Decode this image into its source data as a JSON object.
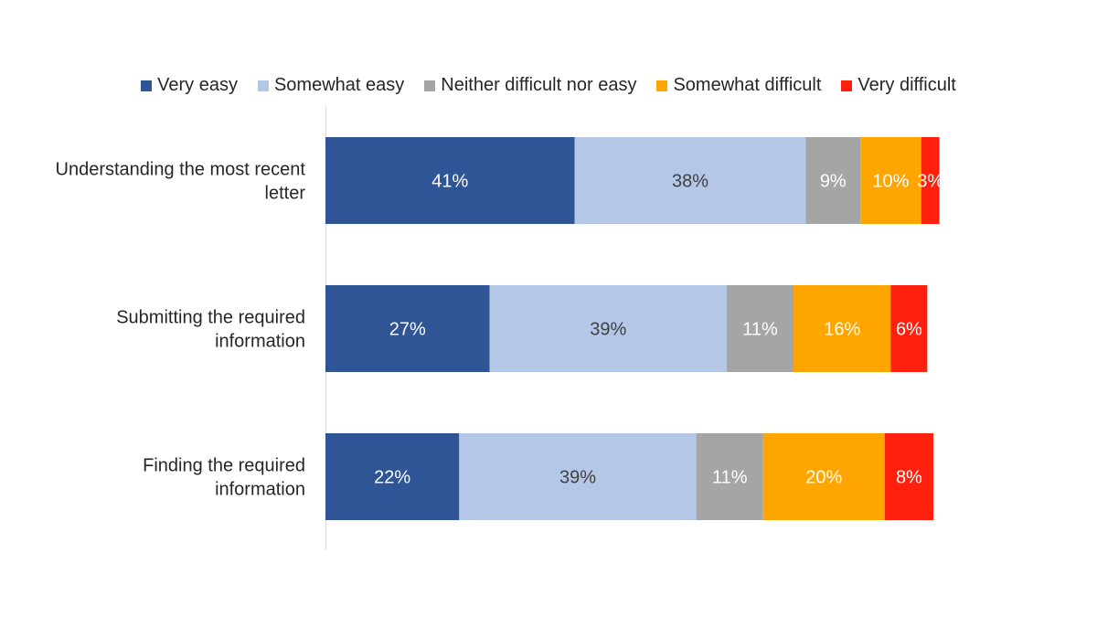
{
  "chart_data": {
    "type": "bar",
    "orientation": "horizontal",
    "stacked": true,
    "categories": [
      [
        "Understanding the most recent",
        "letter"
      ],
      [
        "Submitting the required",
        "information"
      ],
      [
        "Finding the required",
        "information"
      ]
    ],
    "series": [
      {
        "name": "Very easy",
        "color": "#2F5597",
        "label_color": "#FFFFFF",
        "values": [
          41,
          27,
          22
        ]
      },
      {
        "name": "Somewhat easy",
        "color": "#B4C7E7",
        "label_color": "#404040",
        "values": [
          38,
          39,
          39
        ]
      },
      {
        "name": "Neither difficult nor easy",
        "color": "#A5A5A5",
        "label_color": "#FFFFFF",
        "values": [
          9,
          11,
          11
        ]
      },
      {
        "name": "Somewhat difficult",
        "color": "#FFA500",
        "label_color": "#FFFFFF",
        "values": [
          10,
          16,
          20
        ]
      },
      {
        "name": "Very difficult",
        "color": "#FF200D",
        "label_color": "#FFFFFF",
        "values": [
          3,
          6,
          8
        ]
      }
    ],
    "value_suffix": "%",
    "legend": "top",
    "grid": false,
    "xlim": [
      0,
      101
    ]
  }
}
